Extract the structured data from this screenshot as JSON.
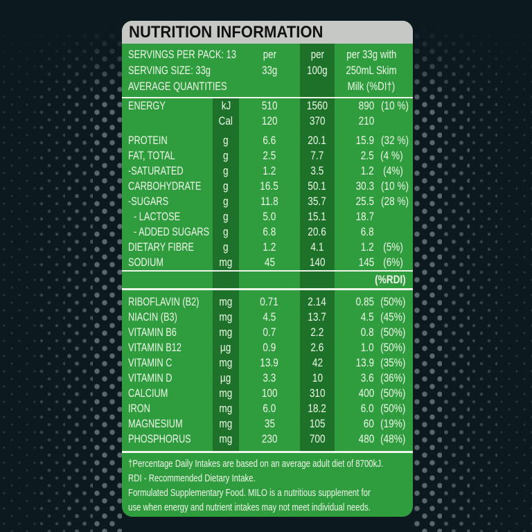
{
  "title": "NUTRITION INFORMATION",
  "header": {
    "line1": "SERVINGS PER PACK: 13",
    "line2": "SERVING SIZE: 33g",
    "line3": "AVERAGE QUANTITIES",
    "per33": {
      "l1": "per",
      "l2": "33g"
    },
    "per100": {
      "l1": "per",
      "l2": "100g"
    },
    "milk": {
      "l1": "per 33g with",
      "l2": "250mL Skim",
      "l3": "Milk (%DI†)"
    }
  },
  "rdi_label": "(%RDI)",
  "main_rows": [
    {
      "name": "ENERGY",
      "unit": "kJ",
      "per33g": "510",
      "per100g": "1560",
      "milk": "890",
      "milk_pct": "(10 %)",
      "indent": 0
    },
    {
      "name": "",
      "unit": "Cal",
      "per33g": "120",
      "per100g": "370",
      "milk": "210",
      "milk_pct": "",
      "indent": 0
    },
    {
      "name": "PROTEIN",
      "unit": "g",
      "per33g": "6.6",
      "per100g": "20.1",
      "milk": "15.9",
      "milk_pct": "(32 %)",
      "indent": 0,
      "gap_before": true
    },
    {
      "name": "FAT, TOTAL",
      "unit": "g",
      "per33g": "2.5",
      "per100g": "7.7",
      "milk": "2.5",
      "milk_pct": "(4 %)",
      "indent": 0
    },
    {
      "name": "-SATURATED",
      "unit": "g",
      "per33g": "1.2",
      "per100g": "3.5",
      "milk": "1.2",
      "milk_pct": "(4%)",
      "indent": 0
    },
    {
      "name": "CARBOHYDRATE",
      "unit": "g",
      "per33g": "16.5",
      "per100g": "50.1",
      "milk": "30.3",
      "milk_pct": "(10 %)",
      "indent": 0
    },
    {
      "name": "-SUGARS",
      "unit": "g",
      "per33g": "11.8",
      "per100g": "35.7",
      "milk": "25.5",
      "milk_pct": "(28 %)",
      "indent": 0
    },
    {
      "name": "- LACTOSE",
      "unit": "g",
      "per33g": "5.0",
      "per100g": "15.1",
      "milk": "18.7",
      "milk_pct": "",
      "indent": 1
    },
    {
      "name": "- ADDED SUGARS",
      "unit": "g",
      "per33g": "6.8",
      "per100g": "20.6",
      "milk": "6.8",
      "milk_pct": "",
      "indent": 1
    },
    {
      "name": "DIETARY FIBRE",
      "unit": "g",
      "per33g": "1.2",
      "per100g": "4.1",
      "milk": "1.2",
      "milk_pct": "(5%)",
      "indent": 0
    },
    {
      "name": "SODIUM",
      "unit": "mg",
      "per33g": "45",
      "per100g": "140",
      "milk": "145",
      "milk_pct": "(6%)",
      "indent": 0
    }
  ],
  "vitamin_rows": [
    {
      "name": "RIBOFLAVIN (B2)",
      "unit": "mg",
      "per33g": "0.71",
      "per100g": "2.14",
      "milk": "0.85",
      "milk_pct": "(50%)",
      "indent": 0
    },
    {
      "name": "NIACIN (B3)",
      "unit": "mg",
      "per33g": "4.5",
      "per100g": "13.7",
      "milk": "4.5",
      "milk_pct": "(45%)",
      "indent": 0
    },
    {
      "name": "VITAMIN B6",
      "unit": "mg",
      "per33g": "0.7",
      "per100g": "2.2",
      "milk": "0.8",
      "milk_pct": "(50%)",
      "indent": 0
    },
    {
      "name": "VITAMIN B12",
      "unit": "µg",
      "per33g": "0.9",
      "per100g": "2.6",
      "milk": "1.0",
      "milk_pct": "(50%)",
      "indent": 0
    },
    {
      "name": "VITAMIN C",
      "unit": "mg",
      "per33g": "13.9",
      "per100g": "42",
      "milk": "13.9",
      "milk_pct": "(35%)",
      "indent": 0
    },
    {
      "name": "VITAMIN D",
      "unit": "µg",
      "per33g": "3.3",
      "per100g": "10",
      "milk": "3.6",
      "milk_pct": "(36%)",
      "indent": 0
    },
    {
      "name": "CALCIUM",
      "unit": "mg",
      "per33g": "100",
      "per100g": "310",
      "milk": "400",
      "milk_pct": "(50%)",
      "indent": 0
    },
    {
      "name": "IRON",
      "unit": "mg",
      "per33g": "6.0",
      "per100g": "18.2",
      "milk": "6.0",
      "milk_pct": "(50%)",
      "indent": 0
    },
    {
      "name": "MAGNESIUM",
      "unit": "mg",
      "per33g": "35",
      "per100g": "105",
      "milk": "60",
      "milk_pct": "(19%)",
      "indent": 0
    },
    {
      "name": "PHOSPHORUS",
      "unit": "mg",
      "per33g": "230",
      "per100g": "700",
      "milk": "480",
      "milk_pct": "(48%)",
      "indent": 0
    }
  ],
  "footnotes": [
    "†Percentage Daily Intakes are based on an average adult diet of 8700kJ.",
    "RDI - Recommended Dietary Intake.",
    "Formulated Supplementary Food. MILO is a nutritious supplement for",
    "use when energy and nutrient intakes may not meet individual needs."
  ],
  "colors": {
    "background": "#0c1a20",
    "panel_green": "#2f9c3e",
    "stripe_green": "#1e7129",
    "title_bar_gray": "#c6c8c6",
    "title_text": "#121212",
    "text_light": "#eefbea",
    "divider_white": "#eef6ec",
    "dot_gray": "#82898d"
  }
}
